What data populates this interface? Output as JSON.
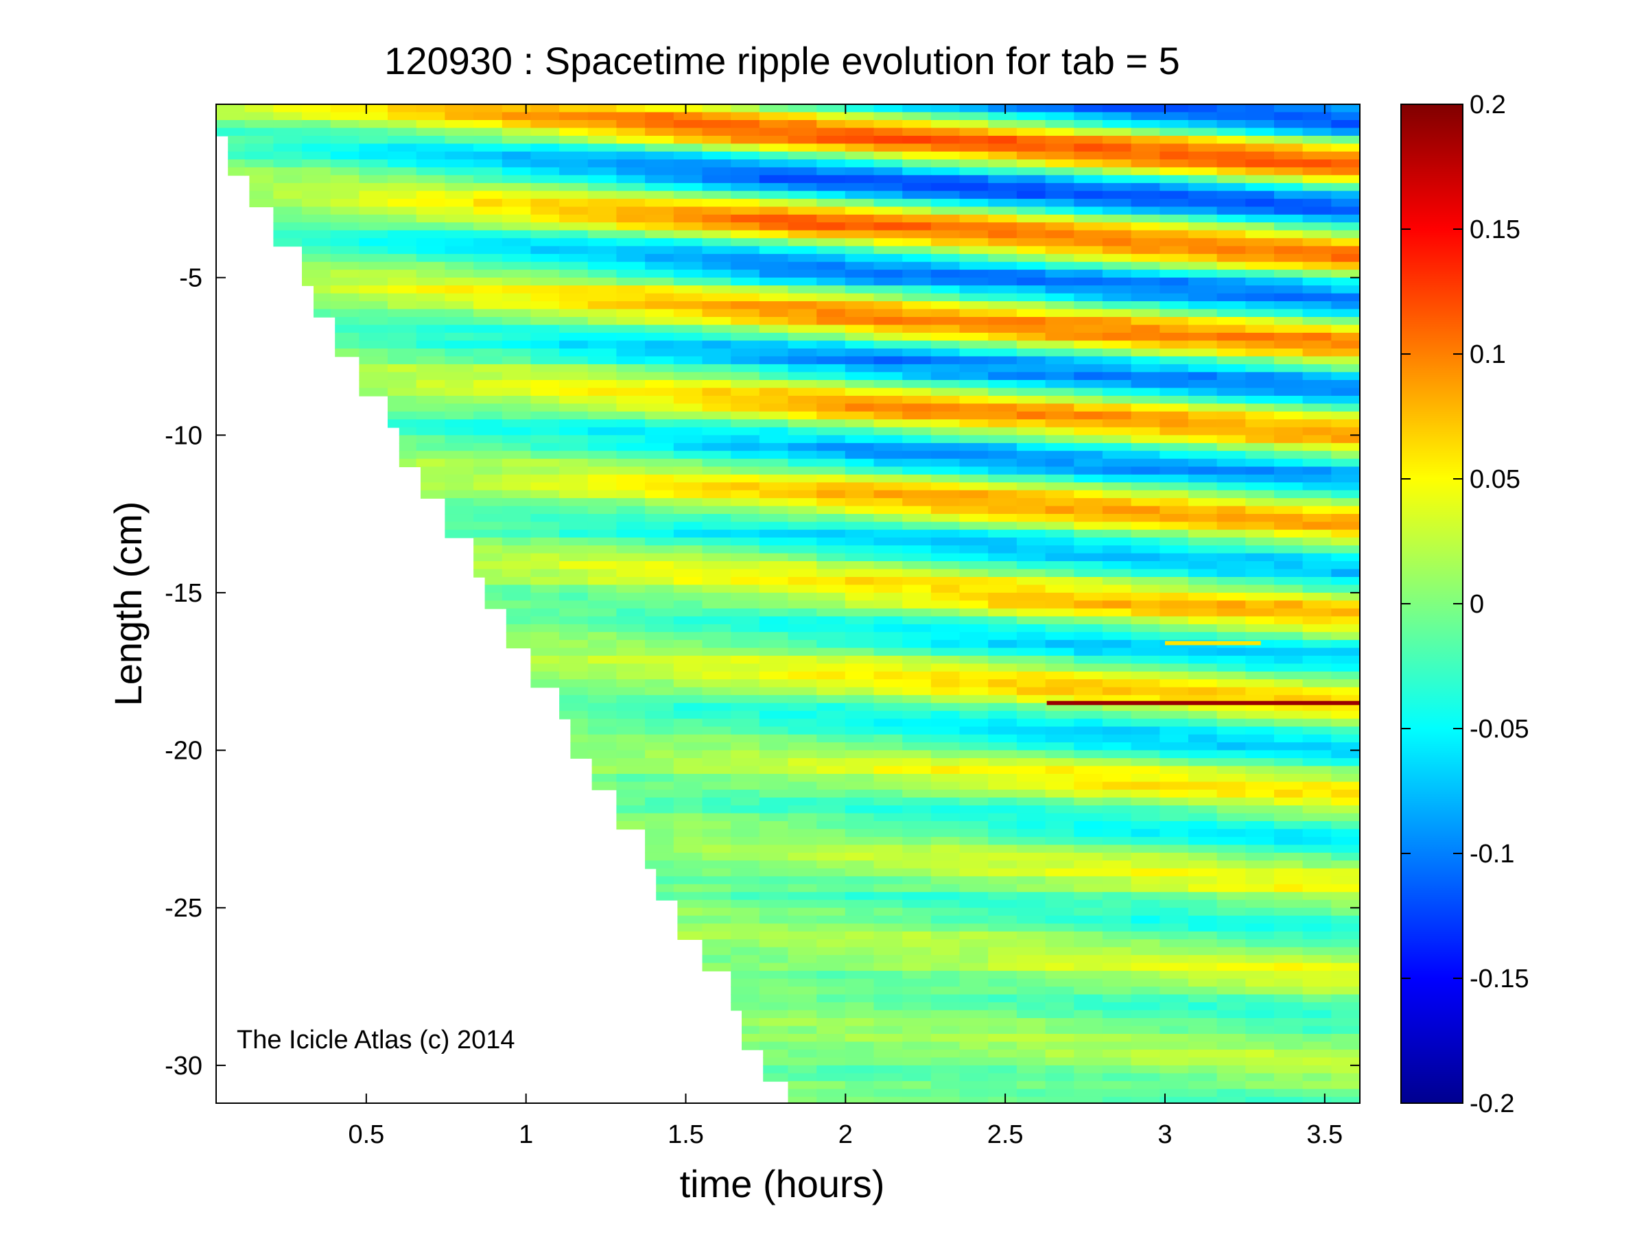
{
  "chart_data": {
    "type": "heatmap",
    "title": "120930 : Spacetime ripple evolution for tab = 5",
    "xlabel": "time (hours)",
    "ylabel": "Length (cm)",
    "annotation": "The Icicle Atlas (c) 2014",
    "xlim": [
      0.03,
      3.61
    ],
    "ylim": [
      -31.2,
      0.5
    ],
    "xticks": [
      {
        "value": 0.5,
        "label": "0.5"
      },
      {
        "value": 1,
        "label": "1"
      },
      {
        "value": 1.5,
        "label": "1.5"
      },
      {
        "value": 2,
        "label": "2"
      },
      {
        "value": 2.5,
        "label": "2.5"
      },
      {
        "value": 3,
        "label": "3"
      },
      {
        "value": 3.5,
        "label": "3.5"
      }
    ],
    "yticks": [
      {
        "value": -5,
        "label": "-5"
      },
      {
        "value": -10,
        "label": "-10"
      },
      {
        "value": -15,
        "label": "-15"
      },
      {
        "value": -20,
        "label": "-20"
      },
      {
        "value": -25,
        "label": "-25"
      },
      {
        "value": -30,
        "label": "-30"
      }
    ],
    "colorbar": {
      "colormap": "jet",
      "clim": [
        -0.2,
        0.2
      ],
      "ticks": [
        {
          "value": 0.2,
          "label": "0.2"
        },
        {
          "value": 0.15,
          "label": "0.15"
        },
        {
          "value": 0.1,
          "label": "0.1"
        },
        {
          "value": 0.05,
          "label": "0.05"
        },
        {
          "value": 0,
          "label": "0"
        },
        {
          "value": -0.05,
          "label": "-0.05"
        },
        {
          "value": -0.1,
          "label": "-0.1"
        },
        {
          "value": -0.15,
          "label": "-0.15"
        },
        {
          "value": -0.2,
          "label": "-0.2"
        }
      ]
    },
    "front_edge": {
      "description": "icicle tip position vs time (data region boundary)",
      "t": [
        0.03,
        1.8
      ],
      "y": [
        -0.5,
        -31.0
      ]
    },
    "notable_features": [
      {
        "y": -18.5,
        "t_start": 2.63,
        "t_end": 3.61,
        "value": 0.19
      },
      {
        "y": -16.6,
        "t_start": 3.0,
        "t_end": 3.3,
        "value": 0.06
      }
    ]
  }
}
